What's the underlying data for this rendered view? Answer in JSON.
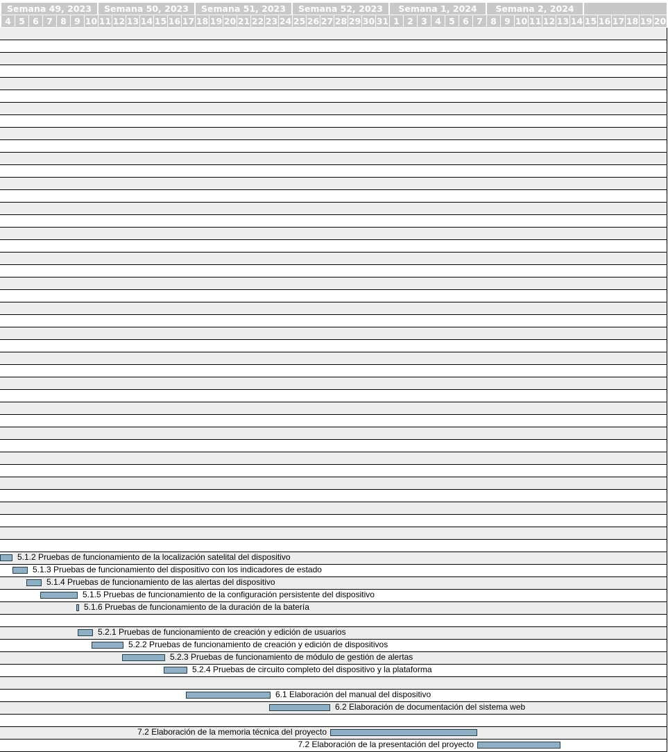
{
  "weeks": [
    "Semana 49, 2023",
    "Semana 50, 2023",
    "Semana 51, 2023",
    "Semana 52, 2023",
    "Semana 1, 2024",
    "Semana 2, 2024"
  ],
  "days": [
    "4",
    "5",
    "6",
    "7",
    "8",
    "9",
    "10",
    "11",
    "12",
    "13",
    "14",
    "15",
    "16",
    "17",
    "18",
    "19",
    "20",
    "21",
    "22",
    "23",
    "24",
    "25",
    "26",
    "27",
    "28",
    "29",
    "30",
    "31",
    "1",
    "2",
    "3",
    "4",
    "5",
    "6",
    "7",
    "8",
    "9",
    "10",
    "11",
    "12",
    "13",
    "14",
    "15",
    "16",
    "17",
    "18",
    "19",
    "20"
  ],
  "tasks": [
    {
      "label": "5.1.2 Pruebas de funcionamiento de la localización satelital del dispositivo",
      "start": 0,
      "end": 0.9,
      "label_side": "right"
    },
    {
      "label": "5.1.3 Pruebas de funcionamiento del dispositivo con los indicadores de estado",
      "start": 0.9,
      "end": 2.0,
      "label_side": "right"
    },
    {
      "label": "5.1.4 Pruebas de funcionamiento de las alertas del dispositivo",
      "start": 1.9,
      "end": 3.0,
      "label_side": "right"
    },
    {
      "label": "5.1.5 Pruebas de funcionamiento de la configuración persistente del dispositivo",
      "start": 2.9,
      "end": 5.6,
      "label_side": "right"
    },
    {
      "label": "5.1.6 Pruebas de funcionamiento de la duración de la batería",
      "start": 5.5,
      "end": 5.7,
      "label_side": "right"
    },
    {
      "label": "",
      "start": null,
      "end": null,
      "label_side": "none"
    },
    {
      "label": "5.2.1 Pruebas de funcionamiento de creación y edición de usuarios",
      "start": 5.6,
      "end": 6.7,
      "label_side": "right"
    },
    {
      "label": "5.2.2 Pruebas de funcionamiento de creación y edición de dispositivos",
      "start": 6.6,
      "end": 8.9,
      "label_side": "right"
    },
    {
      "label": "5.2.3 Pruebas de funcionamiento de módulo de gestión de alertas",
      "start": 8.8,
      "end": 11.9,
      "label_side": "right"
    },
    {
      "label": "5.2.4 Pruebas de circuito completo del dispositivo y la plataforma",
      "start": 11.8,
      "end": 13.5,
      "label_side": "right"
    },
    {
      "label": "",
      "start": null,
      "end": null,
      "label_side": "none"
    },
    {
      "label": "6.1 Elaboración del manual del dispositivo",
      "start": 13.4,
      "end": 19.5,
      "label_side": "right"
    },
    {
      "label": "6.2 Elaboración de documentación del sistema web",
      "start": 19.4,
      "end": 23.8,
      "label_side": "right"
    },
    {
      "label": "",
      "start": null,
      "end": null,
      "label_side": "none"
    },
    {
      "label": "7.2 Elaboración de la memoria técnica del proyecto",
      "start": 23.8,
      "end": 34.4,
      "label_side": "left"
    },
    {
      "label": "7.2 Elaboración de la  presentación del proyecto",
      "start": 34.4,
      "end": 40.4,
      "label_side": "left"
    }
  ]
}
